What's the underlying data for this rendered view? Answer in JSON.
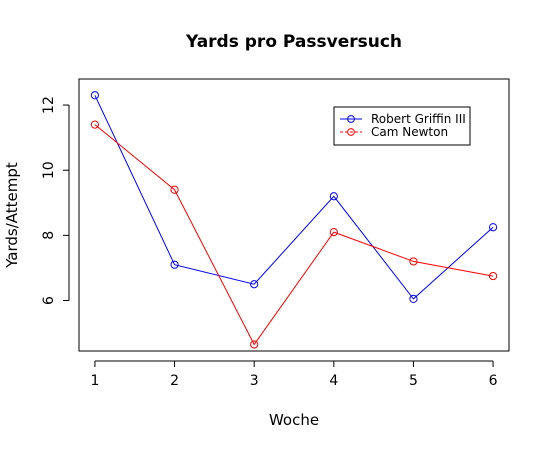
{
  "chart_data": {
    "type": "line",
    "title": "Yards pro Passversuch",
    "xlabel": "Woche",
    "ylabel": "Yards/Attempt",
    "x": [
      1,
      2,
      3,
      4,
      5,
      6
    ],
    "xlim": [
      0.8,
      6.2
    ],
    "ylim": [
      4.45,
      12.8
    ],
    "xticks": [
      1,
      2,
      3,
      4,
      5,
      6
    ],
    "yticks": [
      6,
      8,
      10,
      12
    ],
    "grid": false,
    "legend_position": "top-right",
    "series": [
      {
        "name": "Robert Griffin III",
        "color": "#0000ff",
        "marker": "circle",
        "values": [
          12.3,
          7.1,
          6.5,
          9.2,
          6.05,
          8.25
        ]
      },
      {
        "name": "Cam Newton",
        "color": "#ff0000",
        "marker": "circle",
        "values": [
          11.4,
          9.4,
          4.65,
          8.1,
          7.2,
          6.75
        ]
      }
    ]
  }
}
